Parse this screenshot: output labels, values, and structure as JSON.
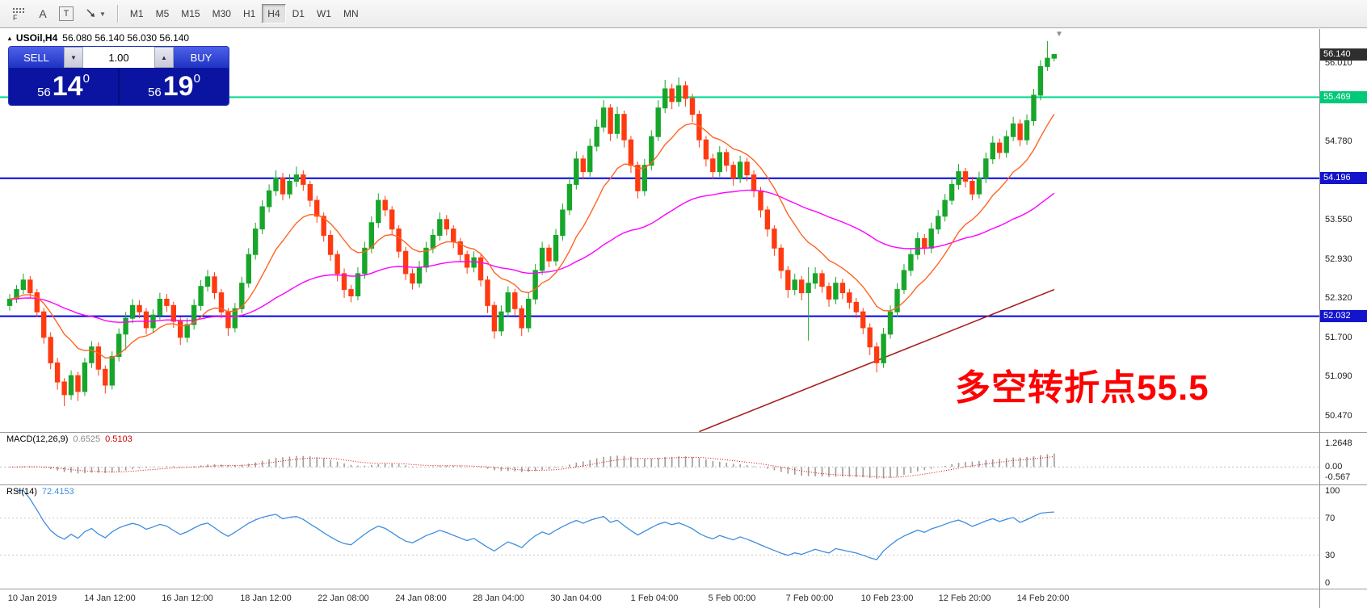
{
  "toolbar": {
    "file_tool_label": "F",
    "tool_a": "A",
    "tool_t": "T",
    "timeframes": [
      {
        "label": "M1",
        "active": false
      },
      {
        "label": "M5",
        "active": false
      },
      {
        "label": "M15",
        "active": false
      },
      {
        "label": "M30",
        "active": false
      },
      {
        "label": "H1",
        "active": false
      },
      {
        "label": "H4",
        "active": true
      },
      {
        "label": "D1",
        "active": false
      },
      {
        "label": "W1",
        "active": false
      },
      {
        "label": "MN",
        "active": false
      }
    ]
  },
  "icons": {
    "dropdown": "▼",
    "up": "▲",
    "collapse": "▲",
    "shift_marker": "▼"
  },
  "header": {
    "symbol_period": "USOil,H4",
    "ohlc": "56.080 56.140 56.030 56.140"
  },
  "trade_panel": {
    "sell_label": "SELL",
    "buy_label": "BUY",
    "volume": "1.00",
    "sell_price": {
      "big": "56",
      "mid": "14",
      "sup": "0"
    },
    "buy_price": {
      "big": "56",
      "mid": "19",
      "sup": "0"
    }
  },
  "annotation": {
    "text": "多空转折点55.5",
    "color": "#ff0000"
  },
  "price_axis": {
    "labels": [
      {
        "text": "56.010",
        "value": 56.01
      },
      {
        "text": "54.780",
        "value": 54.78
      },
      {
        "text": "53.550",
        "value": 53.55
      },
      {
        "text": "52.930",
        "value": 52.93
      },
      {
        "text": "52.320",
        "value": 52.32
      },
      {
        "text": "51.700",
        "value": 51.7
      },
      {
        "text": "51.090",
        "value": 51.09
      },
      {
        "text": "50.470",
        "value": 50.47
      }
    ],
    "tags": [
      {
        "text": "56.140",
        "value": 56.14,
        "bg": "#2f2f2f",
        "fg": "#ffffff"
      },
      {
        "text": "55.469",
        "value": 55.469,
        "bg": "#00c97a",
        "fg": "#ffffff"
      },
      {
        "text": "54.196",
        "value": 54.196,
        "bg": "#1414cc",
        "fg": "#ffffff"
      },
      {
        "text": "52.032",
        "value": 52.032,
        "bg": "#1414cc",
        "fg": "#ffffff"
      }
    ]
  },
  "indicators": {
    "macd": {
      "name": "MACD(12,26,9)",
      "main_value": "0.6525",
      "signal_value": "0.5103",
      "axis_labels": [
        {
          "text": "1.2648",
          "value": 1.2648
        },
        {
          "text": "0.00",
          "value": 0
        },
        {
          "text": "-0.567",
          "value": -0.567
        }
      ]
    },
    "rsi": {
      "name": "RSI(14)",
      "value": "72.4153",
      "axis_labels": [
        {
          "text": "100",
          "value": 100
        },
        {
          "text": "70",
          "value": 70
        },
        {
          "text": "30",
          "value": 30
        },
        {
          "text": "0",
          "value": 0
        }
      ]
    }
  },
  "time_axis": {
    "labels": [
      "10 Jan 2019",
      "14 Jan 12:00",
      "16 Jan 12:00",
      "18 Jan 12:00",
      "22 Jan 08:00",
      "24 Jan 08:00",
      "28 Jan 04:00",
      "30 Jan 04:00",
      "1 Feb 04:00",
      "5 Feb 00:00",
      "7 Feb 00:00",
      "10 Feb 23:00",
      "12 Feb 20:00",
      "14 Feb 20:00"
    ]
  },
  "chart_data": {
    "type": "candlestick",
    "symbol": "USOil",
    "timeframe": "H4",
    "title": "USOil,H4 56.080 56.140 56.030 56.140",
    "price_range": [
      50.215,
      56.538
    ],
    "current_price": 56.14,
    "colors": {
      "bull": "#17a62a",
      "bear": "#ff3a10",
      "ema_fast": "#ff6422",
      "ema_mid": "#ff00ff",
      "ma_slow": "#aa2222",
      "rsi_line": "#3e8ede",
      "macd_hist": "#9c9c9c",
      "macd_signal": "#e00000"
    },
    "overlays": {
      "ema_fast_period": 12,
      "ema_mid_period": 55,
      "trend_ma_points": [
        [
          101,
          50.22
        ],
        [
          153,
          52.45
        ]
      ]
    },
    "hlines": [
      {
        "value": 55.469,
        "color": "#00d98c",
        "width": 2
      },
      {
        "value": 54.196,
        "color": "#0000e8",
        "width": 2
      },
      {
        "value": 52.032,
        "color": "#0000e8",
        "width": 2
      }
    ],
    "macd": {
      "fast": 12,
      "slow": 26,
      "signal": 9,
      "range": [
        -0.936,
        1.837
      ]
    },
    "rsi": {
      "period": 14,
      "range": [
        -6.3,
        105.7
      ],
      "levels": [
        70,
        30
      ]
    },
    "candles": [
      [
        52.2,
        52.38,
        52.12,
        52.3
      ],
      [
        52.3,
        52.52,
        52.24,
        52.45
      ],
      [
        52.45,
        52.7,
        52.38,
        52.6
      ],
      [
        52.6,
        52.66,
        52.32,
        52.4
      ],
      [
        52.4,
        52.46,
        52.02,
        52.1
      ],
      [
        52.1,
        52.16,
        51.6,
        51.7
      ],
      [
        51.7,
        51.78,
        51.2,
        51.3
      ],
      [
        51.3,
        51.38,
        50.88,
        51.0
      ],
      [
        51.0,
        51.06,
        50.62,
        50.8
      ],
      [
        50.8,
        51.18,
        50.72,
        51.1
      ],
      [
        51.1,
        51.16,
        50.7,
        50.85
      ],
      [
        50.85,
        51.38,
        50.78,
        51.3
      ],
      [
        51.3,
        51.64,
        51.22,
        51.55
      ],
      [
        51.55,
        51.62,
        51.1,
        51.2
      ],
      [
        51.2,
        51.26,
        50.82,
        50.95
      ],
      [
        50.95,
        51.48,
        50.88,
        51.4
      ],
      [
        51.4,
        51.84,
        51.32,
        51.75
      ],
      [
        51.75,
        52.1,
        51.5,
        52.0
      ],
      [
        52.0,
        52.3,
        51.92,
        52.2
      ],
      [
        52.2,
        52.28,
        52.0,
        52.1
      ],
      [
        52.1,
        52.16,
        51.75,
        51.85
      ],
      [
        51.85,
        52.14,
        51.78,
        52.05
      ],
      [
        52.05,
        52.4,
        51.98,
        52.3
      ],
      [
        52.3,
        52.38,
        52.1,
        52.2
      ],
      [
        52.2,
        52.26,
        51.85,
        51.95
      ],
      [
        51.95,
        52.02,
        51.58,
        51.7
      ],
      [
        51.7,
        52.0,
        51.62,
        51.9
      ],
      [
        51.9,
        52.3,
        51.82,
        52.2
      ],
      [
        52.2,
        52.6,
        52.12,
        52.5
      ],
      [
        52.5,
        52.76,
        52.42,
        52.65
      ],
      [
        52.65,
        52.72,
        52.3,
        52.4
      ],
      [
        52.4,
        52.46,
        52.0,
        52.1
      ],
      [
        52.1,
        52.16,
        51.72,
        51.85
      ],
      [
        51.85,
        52.24,
        51.78,
        52.15
      ],
      [
        52.15,
        52.65,
        52.08,
        52.55
      ],
      [
        52.55,
        53.1,
        52.48,
        53.0
      ],
      [
        53.0,
        53.5,
        52.92,
        53.4
      ],
      [
        53.4,
        53.85,
        53.32,
        53.75
      ],
      [
        53.75,
        54.1,
        53.66,
        54.0
      ],
      [
        54.0,
        54.32,
        53.92,
        54.2
      ],
      [
        54.2,
        54.28,
        53.85,
        53.95
      ],
      [
        53.95,
        54.26,
        53.88,
        54.15
      ],
      [
        54.15,
        54.38,
        54.06,
        54.25
      ],
      [
        54.25,
        54.32,
        54.0,
        54.1
      ],
      [
        54.1,
        54.16,
        53.75,
        53.85
      ],
      [
        53.85,
        53.92,
        53.5,
        53.6
      ],
      [
        53.6,
        53.66,
        53.2,
        53.3
      ],
      [
        53.3,
        53.38,
        52.9,
        53.0
      ],
      [
        53.0,
        53.06,
        52.58,
        52.7
      ],
      [
        52.7,
        52.78,
        52.32,
        52.45
      ],
      [
        52.45,
        52.52,
        52.25,
        52.35
      ],
      [
        52.35,
        52.8,
        52.28,
        52.7
      ],
      [
        52.7,
        53.2,
        52.62,
        53.1
      ],
      [
        53.1,
        53.6,
        53.02,
        53.5
      ],
      [
        53.5,
        53.96,
        53.42,
        53.85
      ],
      [
        53.85,
        53.92,
        53.6,
        53.7
      ],
      [
        53.7,
        53.76,
        53.3,
        53.4
      ],
      [
        53.4,
        53.46,
        52.95,
        53.05
      ],
      [
        53.05,
        53.12,
        52.6,
        52.7
      ],
      [
        52.7,
        52.78,
        52.45,
        52.55
      ],
      [
        52.55,
        52.9,
        52.48,
        52.8
      ],
      [
        52.8,
        53.2,
        52.72,
        53.1
      ],
      [
        53.1,
        53.4,
        53.02,
        53.3
      ],
      [
        53.3,
        53.66,
        53.22,
        53.55
      ],
      [
        53.55,
        53.62,
        53.3,
        53.4
      ],
      [
        53.4,
        53.46,
        53.1,
        53.2
      ],
      [
        53.2,
        53.26,
        52.9,
        53.0
      ],
      [
        53.0,
        53.06,
        52.7,
        52.8
      ],
      [
        52.8,
        53.05,
        52.72,
        52.95
      ],
      [
        52.95,
        53.0,
        52.5,
        52.6
      ],
      [
        52.6,
        52.66,
        52.08,
        52.2
      ],
      [
        52.2,
        52.26,
        51.68,
        51.8
      ],
      [
        51.8,
        52.2,
        51.72,
        52.1
      ],
      [
        52.1,
        52.5,
        52.02,
        52.4
      ],
      [
        52.4,
        52.46,
        52.05,
        52.15
      ],
      [
        52.15,
        52.2,
        51.72,
        51.85
      ],
      [
        51.85,
        52.4,
        51.78,
        52.3
      ],
      [
        52.3,
        52.85,
        52.22,
        52.75
      ],
      [
        52.75,
        53.2,
        52.68,
        53.1
      ],
      [
        53.1,
        53.16,
        52.8,
        52.9
      ],
      [
        52.9,
        53.4,
        52.82,
        53.3
      ],
      [
        53.3,
        53.8,
        53.22,
        53.7
      ],
      [
        53.7,
        54.22,
        53.62,
        54.1
      ],
      [
        54.1,
        54.62,
        54.02,
        54.5
      ],
      [
        54.5,
        54.56,
        54.18,
        54.3
      ],
      [
        54.3,
        54.82,
        54.22,
        54.7
      ],
      [
        54.7,
        55.12,
        54.62,
        55.0
      ],
      [
        55.0,
        55.42,
        54.92,
        55.3
      ],
      [
        55.3,
        55.36,
        54.78,
        54.9
      ],
      [
        54.9,
        55.32,
        54.82,
        55.2
      ],
      [
        55.2,
        55.26,
        54.68,
        54.8
      ],
      [
        54.8,
        54.86,
        54.28,
        54.4
      ],
      [
        54.4,
        54.46,
        53.88,
        54.0
      ],
      [
        54.0,
        54.5,
        53.92,
        54.4
      ],
      [
        54.4,
        54.95,
        54.32,
        54.85
      ],
      [
        54.85,
        55.42,
        54.78,
        55.3
      ],
      [
        55.3,
        55.74,
        55.22,
        55.6
      ],
      [
        55.6,
        55.68,
        55.28,
        55.4
      ],
      [
        55.4,
        55.78,
        55.32,
        55.65
      ],
      [
        55.65,
        55.72,
        55.32,
        55.45
      ],
      [
        55.45,
        55.52,
        55.08,
        55.2
      ],
      [
        55.2,
        55.26,
        54.68,
        54.8
      ],
      [
        54.8,
        54.86,
        54.38,
        54.5
      ],
      [
        54.5,
        54.58,
        54.18,
        54.3
      ],
      [
        54.3,
        54.7,
        54.22,
        54.6
      ],
      [
        54.6,
        54.66,
        54.3,
        54.4
      ],
      [
        54.4,
        54.46,
        54.08,
        54.2
      ],
      [
        54.2,
        54.55,
        54.12,
        54.45
      ],
      [
        54.45,
        54.52,
        54.15,
        54.25
      ],
      [
        54.25,
        54.32,
        53.9,
        54.0
      ],
      [
        54.0,
        54.06,
        53.58,
        53.7
      ],
      [
        53.7,
        53.76,
        53.28,
        53.4
      ],
      [
        53.4,
        53.46,
        52.98,
        53.1
      ],
      [
        53.1,
        53.16,
        52.62,
        52.75
      ],
      [
        52.75,
        52.82,
        52.32,
        52.45
      ],
      [
        52.45,
        52.7,
        52.36,
        52.6
      ],
      [
        52.6,
        52.66,
        52.28,
        52.4
      ],
      [
        52.4,
        52.8,
        51.65,
        52.55
      ],
      [
        52.55,
        52.8,
        52.46,
        52.7
      ],
      [
        52.7,
        52.76,
        52.4,
        52.5
      ],
      [
        52.5,
        52.56,
        52.18,
        52.3
      ],
      [
        52.3,
        52.65,
        52.22,
        52.55
      ],
      [
        52.55,
        52.62,
        52.3,
        52.4
      ],
      [
        52.4,
        52.46,
        52.15,
        52.25
      ],
      [
        52.25,
        52.32,
        52.0,
        52.1
      ],
      [
        52.1,
        52.16,
        51.75,
        51.85
      ],
      [
        51.85,
        51.92,
        51.42,
        51.55
      ],
      [
        51.55,
        51.62,
        51.15,
        51.3
      ],
      [
        51.3,
        51.85,
        51.22,
        51.75
      ],
      [
        51.75,
        52.2,
        51.68,
        52.1
      ],
      [
        52.1,
        52.55,
        52.02,
        52.45
      ],
      [
        52.45,
        52.85,
        52.38,
        52.75
      ],
      [
        52.75,
        53.1,
        52.66,
        53.0
      ],
      [
        53.0,
        53.35,
        52.92,
        53.25
      ],
      [
        53.25,
        53.32,
        53.0,
        53.1
      ],
      [
        53.1,
        53.5,
        53.02,
        53.4
      ],
      [
        53.4,
        53.7,
        53.32,
        53.6
      ],
      [
        53.6,
        53.95,
        53.52,
        53.85
      ],
      [
        53.85,
        54.22,
        53.78,
        54.1
      ],
      [
        54.1,
        54.42,
        54.02,
        54.3
      ],
      [
        54.3,
        54.36,
        54.05,
        54.15
      ],
      [
        54.15,
        54.22,
        53.85,
        53.95
      ],
      [
        53.95,
        54.3,
        53.88,
        54.2
      ],
      [
        54.2,
        54.6,
        54.12,
        54.5
      ],
      [
        54.5,
        54.86,
        54.42,
        54.75
      ],
      [
        54.75,
        54.82,
        54.5,
        54.6
      ],
      [
        54.6,
        54.95,
        54.52,
        54.85
      ],
      [
        54.85,
        55.16,
        54.78,
        55.05
      ],
      [
        55.05,
        55.12,
        54.7,
        54.8
      ],
      [
        54.8,
        55.2,
        54.72,
        55.1
      ],
      [
        55.1,
        55.6,
        55.02,
        55.5
      ],
      [
        55.5,
        56.05,
        55.42,
        55.95
      ],
      [
        55.95,
        56.35,
        55.88,
        56.08
      ],
      [
        56.08,
        56.14,
        56.03,
        56.14
      ]
    ]
  }
}
